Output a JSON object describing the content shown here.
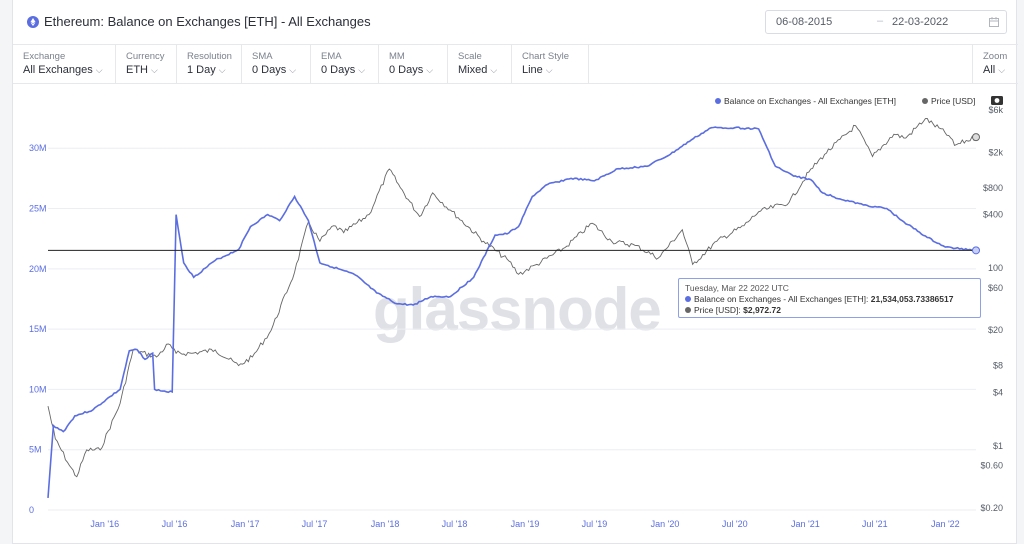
{
  "header": {
    "title": "Ethereum: Balance on Exchanges [ETH] - All Exchanges",
    "date_start": "06-08-2015",
    "date_end": "22-03-2022",
    "date_separator": "–"
  },
  "controls": [
    {
      "label": "Exchange",
      "value": "All Exchanges"
    },
    {
      "label": "Currency",
      "value": "ETH"
    },
    {
      "label": "Resolution",
      "value": "1 Day"
    },
    {
      "label": "SMA",
      "value": "0 Days"
    },
    {
      "label": "EMA",
      "value": "0 Days"
    },
    {
      "label": "MM",
      "value": "0 Days"
    },
    {
      "label": "Scale",
      "value": "Mixed"
    },
    {
      "label": "Chart Style",
      "value": "Line"
    }
  ],
  "zoom": {
    "label": "Zoom",
    "value": "All"
  },
  "watermark": "glassnode",
  "tooltip": {
    "date": "Tuesday, Mar 22 2022 UTC",
    "balance_label": "Balance on Exchanges - All Exchanges [ETH]:",
    "balance_value": "21,534,053.73386517",
    "price_label": "Price [USD]:",
    "price_value": "$2,972.72"
  },
  "colors": {
    "balance": "#5b6ee1",
    "price": "#666666",
    "crosshair": "#222222"
  },
  "icons": {
    "title": "ethereum-icon",
    "calendar": "calendar-icon",
    "camera": "camera-icon"
  },
  "chart_data": {
    "type": "line",
    "title": "",
    "legend_placement": "top-right",
    "x_axis": {
      "ticks": [
        "Jan '16",
        "Jul '16",
        "Jan '17",
        "Jul '17",
        "Jan '18",
        "Jul '18",
        "Jan '19",
        "Jul '19",
        "Jan '20",
        "Jul '20",
        "Jan '21",
        "Jul '21",
        "Jan '22"
      ],
      "range": [
        "2015-08-06",
        "2022-03-22"
      ]
    },
    "y_left": {
      "ticks": [
        "0",
        "5M",
        "10M",
        "15M",
        "20M",
        "25M",
        "30M"
      ],
      "range": [
        0,
        34000000
      ],
      "scale": "linear"
    },
    "y_right": {
      "ticks": [
        "$0.20",
        "$0.60",
        "$1",
        "$4",
        "$8",
        "$20",
        "$60",
        "100",
        "$400",
        "$800",
        "$2k",
        "$6k"
      ],
      "scale": "log"
    },
    "series": [
      {
        "name": "Balance on Exchanges - All Exchanges [ETH]",
        "axis": "left",
        "points": [
          [
            "2015-08-06",
            1000000
          ],
          [
            "2015-08-20",
            7000000
          ],
          [
            "2015-09-15",
            6500000
          ],
          [
            "2015-10-15",
            7800000
          ],
          [
            "2015-12-01",
            8300000
          ],
          [
            "2016-01-15",
            9400000
          ],
          [
            "2016-02-10",
            10000000
          ],
          [
            "2016-03-05",
            13200000
          ],
          [
            "2016-03-25",
            13300000
          ],
          [
            "2016-04-15",
            12500000
          ],
          [
            "2016-05-05",
            13000000
          ],
          [
            "2016-05-10",
            10000000
          ],
          [
            "2016-06-10",
            9800000
          ],
          [
            "2016-06-25",
            9800000
          ],
          [
            "2016-07-05",
            24500000
          ],
          [
            "2016-07-25",
            20500000
          ],
          [
            "2016-08-20",
            19300000
          ],
          [
            "2016-10-15",
            20700000
          ],
          [
            "2016-12-15",
            21600000
          ],
          [
            "2017-01-15",
            23500000
          ],
          [
            "2017-03-01",
            24500000
          ],
          [
            "2017-04-01",
            24000000
          ],
          [
            "2017-05-10",
            26000000
          ],
          [
            "2017-06-15",
            24000000
          ],
          [
            "2017-07-15",
            20500000
          ],
          [
            "2017-09-01",
            20000000
          ],
          [
            "2017-10-15",
            19500000
          ],
          [
            "2017-12-10",
            18000000
          ],
          [
            "2018-02-01",
            17100000
          ],
          [
            "2018-03-15",
            17000000
          ],
          [
            "2018-05-01",
            17700000
          ],
          [
            "2018-06-20",
            17700000
          ],
          [
            "2018-08-20",
            19300000
          ],
          [
            "2018-10-15",
            22800000
          ],
          [
            "2018-11-15",
            22900000
          ],
          [
            "2018-12-15",
            23500000
          ],
          [
            "2019-01-20",
            26000000
          ],
          [
            "2019-03-01",
            27000000
          ],
          [
            "2019-05-01",
            27500000
          ],
          [
            "2019-07-01",
            27300000
          ],
          [
            "2019-09-01",
            28300000
          ],
          [
            "2019-11-15",
            28500000
          ],
          [
            "2020-01-15",
            29500000
          ],
          [
            "2020-03-15",
            30800000
          ],
          [
            "2020-05-01",
            31700000
          ],
          [
            "2020-07-01",
            31700000
          ],
          [
            "2020-09-01",
            31600000
          ],
          [
            "2020-10-15",
            28500000
          ],
          [
            "2020-12-01",
            27700000
          ],
          [
            "2021-01-15",
            27400000
          ],
          [
            "2021-02-15",
            26300000
          ],
          [
            "2021-04-01",
            25800000
          ],
          [
            "2021-06-01",
            25300000
          ],
          [
            "2021-08-01",
            25000000
          ],
          [
            "2021-09-10",
            24000000
          ],
          [
            "2021-11-15",
            22600000
          ],
          [
            "2022-01-01",
            21800000
          ],
          [
            "2022-03-22",
            21534053.73
          ]
        ]
      },
      {
        "name": "Price [USD]",
        "axis": "right",
        "points": [
          [
            "2015-08-06",
            2.8
          ],
          [
            "2015-08-25",
            1.2
          ],
          [
            "2015-10-01",
            0.6
          ],
          [
            "2015-10-20",
            0.45
          ],
          [
            "2015-11-15",
            0.9
          ],
          [
            "2015-12-20",
            0.9
          ],
          [
            "2016-02-10",
            3
          ],
          [
            "2016-03-15",
            12
          ],
          [
            "2016-05-15",
            10
          ],
          [
            "2016-06-15",
            14
          ],
          [
            "2016-07-05",
            11
          ],
          [
            "2016-08-15",
            11
          ],
          [
            "2016-10-15",
            12
          ],
          [
            "2016-12-15",
            8
          ],
          [
            "2017-01-20",
            10
          ],
          [
            "2017-03-10",
            20
          ],
          [
            "2017-05-10",
            90
          ],
          [
            "2017-06-15",
            330
          ],
          [
            "2017-07-15",
            200
          ],
          [
            "2017-08-20",
            300
          ],
          [
            "2017-09-15",
            250
          ],
          [
            "2017-11-20",
            400
          ],
          [
            "2018-01-12",
            1300
          ],
          [
            "2018-02-10",
            800
          ],
          [
            "2018-04-01",
            380
          ],
          [
            "2018-05-05",
            700
          ],
          [
            "2018-06-20",
            450
          ],
          [
            "2018-09-15",
            200
          ],
          [
            "2018-11-20",
            120
          ],
          [
            "2018-12-15",
            85
          ],
          [
            "2019-02-01",
            110
          ],
          [
            "2019-04-15",
            170
          ],
          [
            "2019-06-25",
            320
          ],
          [
            "2019-08-15",
            200
          ],
          [
            "2019-10-15",
            180
          ],
          [
            "2019-12-15",
            130
          ],
          [
            "2020-02-15",
            270
          ],
          [
            "2020-03-13",
            110
          ],
          [
            "2020-05-15",
            200
          ],
          [
            "2020-07-25",
            300
          ],
          [
            "2020-09-01",
            430
          ],
          [
            "2020-11-20",
            550
          ],
          [
            "2021-01-10",
            1200
          ],
          [
            "2021-02-20",
            1900
          ],
          [
            "2021-05-12",
            4000
          ],
          [
            "2021-06-25",
            1800
          ],
          [
            "2021-08-20",
            3200
          ],
          [
            "2021-09-20",
            2900
          ],
          [
            "2021-11-10",
            4800
          ],
          [
            "2022-01-10",
            3100
          ],
          [
            "2022-01-25",
            2400
          ],
          [
            "2022-03-22",
            2972.72
          ]
        ]
      }
    ]
  }
}
